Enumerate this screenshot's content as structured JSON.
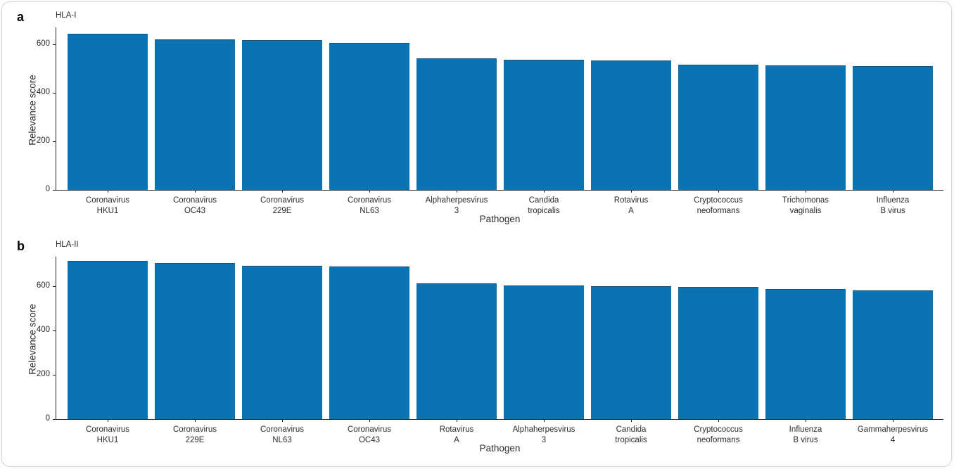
{
  "figure": {
    "description_visible_text_only": true,
    "panel_count": 2
  },
  "colors": {
    "bar_fill": "#0a73b2",
    "bar_top_edge": "#1b3d5c",
    "axis_spine": "#1f1f1f",
    "text": "#2b2b2b",
    "card_background": "#ffffff",
    "card_border": "#d6d6d6"
  },
  "chart_data": [
    {
      "type": "bar",
      "panel_label": "a",
      "title": "HLA-I",
      "xlabel": "Pathogen",
      "ylabel": "Relevance score",
      "categories": [
        "Coronavirus\nHKU1",
        "Coronavirus\nOC43",
        "Coronavirus\n229E",
        "Coronavirus\nNL63",
        "Alphaherpesvirus\n3",
        "Candida\ntropicalis",
        "Rotavirus\nA",
        "Cryptococcus\nneoformans",
        "Trichomonas\nvaginalis",
        "Influenza\nB virus"
      ],
      "values": [
        645,
        622,
        618,
        606,
        543,
        537,
        535,
        516,
        512,
        510
      ],
      "yticks": [
        0,
        200,
        400,
        600
      ],
      "ylim": [
        0,
        670
      ],
      "grid": false,
      "legend": false,
      "bar_color": "#0a73b2"
    },
    {
      "type": "bar",
      "panel_label": "b",
      "title": "HLA-II",
      "xlabel": "Pathogen",
      "ylabel": "Relevance score",
      "categories": [
        "Coronavirus\nHKU1",
        "Coronavirus\n229E",
        "Coronavirus\nNL63",
        "Coronavirus\nOC43",
        "Rotavirus\nA",
        "Alphaherpesvirus\n3",
        "Candida\ntropicalis",
        "Cryptococcus\nneoformans",
        "Influenza\nB virus",
        "Gammaherpesvirus\n4"
      ],
      "values": [
        715,
        707,
        694,
        691,
        612,
        605,
        602,
        597,
        588,
        582
      ],
      "yticks": [
        0,
        200,
        400,
        600
      ],
      "ylim": [
        0,
        734
      ],
      "grid": false,
      "legend": false,
      "bar_color": "#0a73b2"
    }
  ]
}
